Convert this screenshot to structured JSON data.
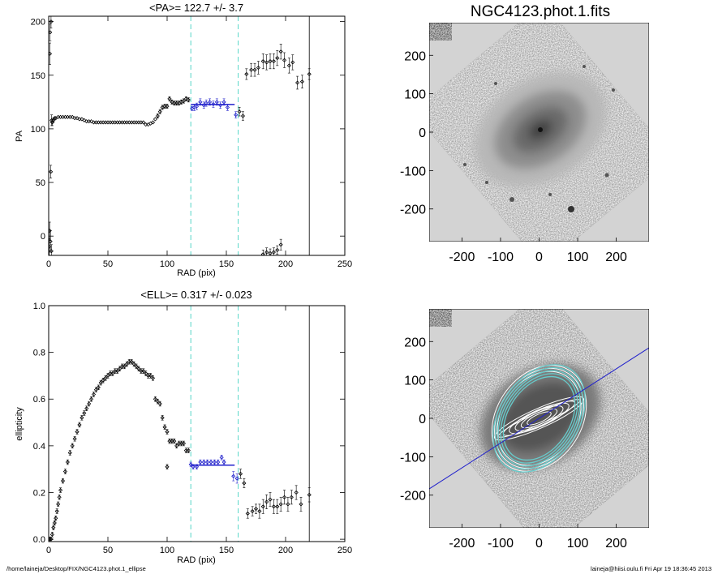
{
  "footer": {
    "left": "/home/laineja/Desktop/FIX/NGC4123.phot.1_ellipse",
    "right": "laineja@hiisi.oulu.fi  Fri Apr 19 18:36:45 2013"
  },
  "colors": {
    "marker": "#000000",
    "fit_line": "#2222cc",
    "guide_lines": "#55d6c8",
    "background_gray": "#d3d3d3",
    "isophotes": "#ffffff",
    "outer_isophotes": "#66cccc"
  },
  "chart_data": [
    {
      "type": "scatter",
      "title": "<PA>= 122.7 +/-   3.7",
      "xlabel": "RAD (pix)",
      "ylabel": "PA",
      "xlim": [
        0,
        250
      ],
      "ylim": [
        -18,
        205
      ],
      "xticks": [
        "0",
        "50",
        "100",
        "150",
        "200",
        "250"
      ],
      "yticks": [
        "0",
        "50",
        "100",
        "150",
        "200"
      ],
      "guide_lines_x": [
        120,
        160
      ],
      "cutoff_x": 220,
      "fit": {
        "label": "<PA>",
        "value": 122.7,
        "err": 3.7,
        "x_range": [
          120,
          160
        ]
      },
      "series": [
        {
          "points": [
            [
              0.5,
              -10,
              8
            ],
            [
              0.8,
              5,
              8
            ],
            [
              1.0,
              170,
              10
            ],
            [
              1.2,
              190,
              8
            ],
            [
              1.5,
              -5,
              10
            ],
            [
              1.8,
              60,
              6
            ],
            [
              2.0,
              200,
              6
            ],
            [
              2.3,
              -14,
              6
            ],
            [
              2.5,
              108,
              5
            ],
            [
              3,
              106,
              3
            ],
            [
              4,
              108,
              2
            ],
            [
              5,
              110,
              1
            ],
            [
              6,
              110,
              1
            ],
            [
              8,
              111,
              1
            ],
            [
              10,
              111,
              1
            ],
            [
              12,
              111,
              1
            ],
            [
              14,
              111,
              1
            ],
            [
              16,
              111,
              1
            ],
            [
              18,
              111,
              1
            ],
            [
              20,
              111,
              1
            ],
            [
              22,
              110,
              1
            ],
            [
              24,
              110,
              1
            ],
            [
              26,
              109,
              1
            ],
            [
              28,
              109,
              1
            ],
            [
              30,
              108,
              1
            ],
            [
              32,
              107,
              1
            ],
            [
              34,
              107,
              1
            ],
            [
              36,
              107,
              1
            ],
            [
              38,
              106,
              1
            ],
            [
              40,
              106,
              1
            ],
            [
              42,
              106,
              1
            ],
            [
              44,
              106,
              1
            ],
            [
              46,
              106,
              1
            ],
            [
              48,
              106,
              1
            ],
            [
              50,
              106,
              1
            ],
            [
              52,
              106,
              1
            ],
            [
              54,
              106,
              1
            ],
            [
              56,
              106,
              1
            ],
            [
              58,
              106,
              1
            ],
            [
              60,
              106,
              1
            ],
            [
              62,
              106,
              1
            ],
            [
              64,
              106,
              1
            ],
            [
              66,
              106,
              1
            ],
            [
              68,
              106,
              1
            ],
            [
              70,
              106,
              1
            ],
            [
              72,
              106,
              1
            ],
            [
              74,
              106,
              1
            ],
            [
              76,
              106,
              1
            ],
            [
              78,
              106,
              1
            ],
            [
              80,
              106,
              1
            ],
            [
              82,
              104,
              1
            ],
            [
              84,
              104,
              1
            ],
            [
              86,
              105,
              1
            ],
            [
              88,
              106,
              1
            ],
            [
              90,
              109,
              1
            ],
            [
              92,
              112,
              2
            ],
            [
              94,
              116,
              2
            ],
            [
              96,
              120,
              2
            ],
            [
              98,
              121,
              2
            ],
            [
              100,
              121,
              2
            ],
            [
              102,
              128,
              2
            ],
            [
              104,
              125,
              2
            ],
            [
              106,
              124,
              2
            ],
            [
              108,
              124,
              2
            ],
            [
              110,
              124,
              2
            ],
            [
              112,
              125,
              2
            ],
            [
              114,
              126,
              2
            ],
            [
              116,
              128,
              2
            ],
            [
              118,
              127,
              2
            ],
            [
              121,
              119,
              2
            ],
            [
              123,
              120,
              3
            ],
            [
              125,
              121,
              3
            ],
            [
              128,
              125,
              3
            ],
            [
              131,
              122,
              3
            ],
            [
              133,
              124,
              3
            ],
            [
              136,
              125,
              3
            ],
            [
              139,
              123,
              3
            ],
            [
              142,
              125,
              3
            ],
            [
              145,
              122,
              3
            ],
            [
              148,
              125,
              3
            ],
            [
              151,
              120,
              3
            ],
            [
              158,
              113,
              3
            ],
            [
              161,
              116,
              4
            ],
            [
              164,
              112,
              4
            ],
            [
              167,
              151,
              5
            ],
            [
              171,
              155,
              6
            ],
            [
              174,
              155,
              6
            ],
            [
              177,
              157,
              6
            ],
            [
              181,
              163,
              7
            ],
            [
              184,
              162,
              7
            ],
            [
              187,
              163,
              7
            ],
            [
              190,
              163,
              7
            ],
            [
              193,
              166,
              7
            ],
            [
              196,
              172,
              7
            ],
            [
              199,
              164,
              7
            ],
            [
              203,
              159,
              7
            ],
            [
              206,
              162,
              7
            ],
            [
              210,
              143,
              6
            ],
            [
              214,
              144,
              6
            ],
            [
              220,
              151,
              5
            ],
            [
              181,
              -17,
              4
            ],
            [
              184,
              -15,
              4
            ],
            [
              187,
              -16,
              4
            ],
            [
              190,
              -15,
              4
            ],
            [
              193,
              -13,
              4
            ],
            [
              196,
              -8,
              5
            ]
          ]
        }
      ]
    },
    {
      "type": "scatter",
      "title": "<ELL>= 0.317 +/-  0.023",
      "xlabel": "RAD (pix)",
      "ylabel": "ellipticity",
      "xlim": [
        0,
        250
      ],
      "ylim": [
        -0.01,
        1.0
      ],
      "xticks": [
        "0",
        "50",
        "100",
        "150",
        "200",
        "250"
      ],
      "yticks": [
        "0.0",
        "0.2",
        "0.4",
        "0.6",
        "0.8",
        "1.0"
      ],
      "guide_lines_x": [
        120,
        160
      ],
      "cutoff_x": 220,
      "fit": {
        "label": "<ELL>",
        "value": 0.317,
        "err": 0.023,
        "x_range": [
          120,
          160
        ]
      },
      "series": [
        {
          "points": [
            [
              1,
              0.0,
              0.01
            ],
            [
              2,
              0.0,
              0.01
            ],
            [
              3,
              0.02,
              0.01
            ],
            [
              4,
              0.05,
              0.01
            ],
            [
              5,
              0.07,
              0.01
            ],
            [
              6,
              0.09,
              0.01
            ],
            [
              7,
              0.12,
              0.01
            ],
            [
              8,
              0.15,
              0.01
            ],
            [
              9,
              0.18,
              0.01
            ],
            [
              10,
              0.21,
              0.01
            ],
            [
              12,
              0.25,
              0.01
            ],
            [
              14,
              0.29,
              0.01
            ],
            [
              16,
              0.33,
              0.01
            ],
            [
              18,
              0.37,
              0.01
            ],
            [
              20,
              0.4,
              0.01
            ],
            [
              22,
              0.43,
              0.01
            ],
            [
              24,
              0.46,
              0.01
            ],
            [
              26,
              0.49,
              0.01
            ],
            [
              28,
              0.52,
              0.01
            ],
            [
              30,
              0.54,
              0.01
            ],
            [
              32,
              0.56,
              0.01
            ],
            [
              34,
              0.58,
              0.01
            ],
            [
              36,
              0.6,
              0.01
            ],
            [
              38,
              0.62,
              0.01
            ],
            [
              40,
              0.64,
              0.01
            ],
            [
              42,
              0.65,
              0.01
            ],
            [
              44,
              0.67,
              0.01
            ],
            [
              46,
              0.68,
              0.01
            ],
            [
              48,
              0.69,
              0.01
            ],
            [
              50,
              0.7,
              0.01
            ],
            [
              52,
              0.71,
              0.01
            ],
            [
              54,
              0.71,
              0.01
            ],
            [
              56,
              0.72,
              0.01
            ],
            [
              58,
              0.72,
              0.01
            ],
            [
              60,
              0.73,
              0.01
            ],
            [
              62,
              0.74,
              0.01
            ],
            [
              64,
              0.74,
              0.01
            ],
            [
              66,
              0.75,
              0.01
            ],
            [
              68,
              0.76,
              0.01
            ],
            [
              70,
              0.76,
              0.01
            ],
            [
              72,
              0.75,
              0.01
            ],
            [
              74,
              0.74,
              0.01
            ],
            [
              76,
              0.73,
              0.01
            ],
            [
              78,
              0.72,
              0.01
            ],
            [
              80,
              0.72,
              0.01
            ],
            [
              82,
              0.71,
              0.01
            ],
            [
              84,
              0.7,
              0.01
            ],
            [
              86,
              0.7,
              0.01
            ],
            [
              88,
              0.69,
              0.01
            ],
            [
              90,
              0.6,
              0.01
            ],
            [
              92,
              0.59,
              0.01
            ],
            [
              94,
              0.58,
              0.01
            ],
            [
              96,
              0.52,
              0.01
            ],
            [
              98,
              0.48,
              0.01
            ],
            [
              100,
              0.46,
              0.01
            ],
            [
              102,
              0.42,
              0.01
            ],
            [
              104,
              0.42,
              0.01
            ],
            [
              106,
              0.42,
              0.01
            ],
            [
              108,
              0.4,
              0.01
            ],
            [
              110,
              0.41,
              0.01
            ],
            [
              112,
              0.41,
              0.01
            ],
            [
              114,
              0.41,
              0.01
            ],
            [
              116,
              0.38,
              0.01
            ],
            [
              118,
              0.38,
              0.01
            ],
            [
              100,
              0.31,
              0.01
            ],
            [
              120,
              0.32,
              0.01
            ],
            [
              122,
              0.31,
              0.01
            ],
            [
              125,
              0.31,
              0.01
            ],
            [
              128,
              0.33,
              0.01
            ],
            [
              131,
              0.33,
              0.01
            ],
            [
              134,
              0.33,
              0.01
            ],
            [
              137,
              0.33,
              0.01
            ],
            [
              140,
              0.33,
              0.01
            ],
            [
              143,
              0.33,
              0.01
            ],
            [
              146,
              0.35,
              0.01
            ],
            [
              148,
              0.33,
              0.01
            ],
            [
              156,
              0.27,
              0.02
            ],
            [
              159,
              0.26,
              0.02
            ],
            [
              162,
              0.28,
              0.02
            ],
            [
              165,
              0.24,
              0.02
            ],
            [
              168,
              0.11,
              0.02
            ],
            [
              172,
              0.12,
              0.02
            ],
            [
              175,
              0.13,
              0.02
            ],
            [
              178,
              0.12,
              0.03
            ],
            [
              181,
              0.14,
              0.03
            ],
            [
              184,
              0.16,
              0.03
            ],
            [
              187,
              0.17,
              0.03
            ],
            [
              190,
              0.14,
              0.03
            ],
            [
              193,
              0.14,
              0.03
            ],
            [
              196,
              0.15,
              0.03
            ],
            [
              199,
              0.18,
              0.03
            ],
            [
              202,
              0.15,
              0.03
            ],
            [
              205,
              0.18,
              0.03
            ],
            [
              209,
              0.2,
              0.03
            ],
            [
              213,
              0.15,
              0.03
            ],
            [
              220,
              0.19,
              0.03
            ]
          ]
        }
      ]
    },
    {
      "type": "heatmap",
      "title": "NGC4123.phot.1.fits",
      "xlim": [
        -285,
        285
      ],
      "ylim": [
        -285,
        285
      ],
      "xticks": [
        "-200",
        "-100",
        "0",
        "100",
        "200"
      ],
      "yticks": [
        "-200",
        "-100",
        "0",
        "100",
        "200"
      ]
    },
    {
      "type": "heatmap",
      "title": "",
      "xlim": [
        -285,
        285
      ],
      "ylim": [
        -285,
        285
      ],
      "xticks": [
        "-200",
        "-100",
        "0",
        "100",
        "200"
      ],
      "yticks": [
        "-200",
        "-100",
        "0",
        "100",
        "200"
      ],
      "major_axis_pa_deg": 122.7,
      "ellipticity": 0.317
    }
  ]
}
